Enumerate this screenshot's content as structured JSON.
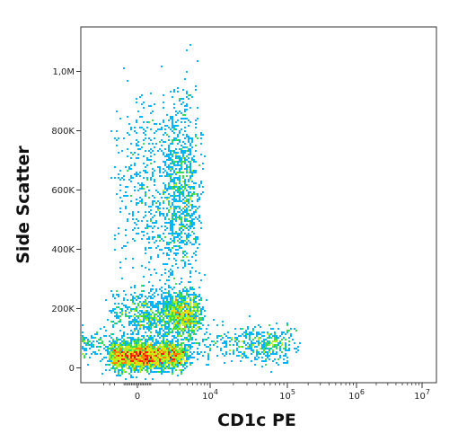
{
  "chart_data": {
    "type": "scatter",
    "title": "",
    "xlabel": "CD1c PE",
    "ylabel": "Side Scatter",
    "x_scale": "biexponential",
    "y_scale": "linear",
    "ylim": [
      -50000,
      1150000
    ],
    "grid": false,
    "legend": "none",
    "colormap": [
      "#1e1eb4",
      "#1e50ff",
      "#00b4ff",
      "#00e6c8",
      "#3cdc50",
      "#b4f01e",
      "#ffdc00",
      "#ff8200",
      "#ff1e00",
      "#b40000"
    ],
    "x_ticks": [
      {
        "value": 0,
        "label": "0"
      },
      {
        "value": 10000,
        "label": "10",
        "exponent": "4"
      },
      {
        "value": 100000,
        "label": "10",
        "exponent": "5"
      },
      {
        "value": 1000000,
        "label": "10",
        "exponent": "6"
      },
      {
        "value": 10000000,
        "label": "10",
        "exponent": "7"
      }
    ],
    "y_ticks": [
      {
        "value": 0,
        "label": "0"
      },
      {
        "value": 200000,
        "label": "200K"
      },
      {
        "value": 400000,
        "label": "400K"
      },
      {
        "value": 600000,
        "label": "600K"
      },
      {
        "value": 800000,
        "label": "800K"
      },
      {
        "value": 1000000,
        "label": "1,0M"
      }
    ],
    "populations": [
      {
        "center_x": 500,
        "center_y": 40000,
        "spread_x": 1500,
        "spread_y": 25000,
        "relative_density": 1.0
      },
      {
        "center_x": 2500,
        "center_y": 180000,
        "spread_x": 2000,
        "spread_y": 40000,
        "relative_density": 0.55
      },
      {
        "center_x": 2500,
        "center_y": 600000,
        "spread_x": 1800,
        "spread_y": 150000,
        "relative_density": 0.5
      },
      {
        "center_x": 30000,
        "center_y": 80000,
        "spread_x": 40000,
        "spread_y": 30000,
        "relative_density": 0.25
      }
    ]
  }
}
